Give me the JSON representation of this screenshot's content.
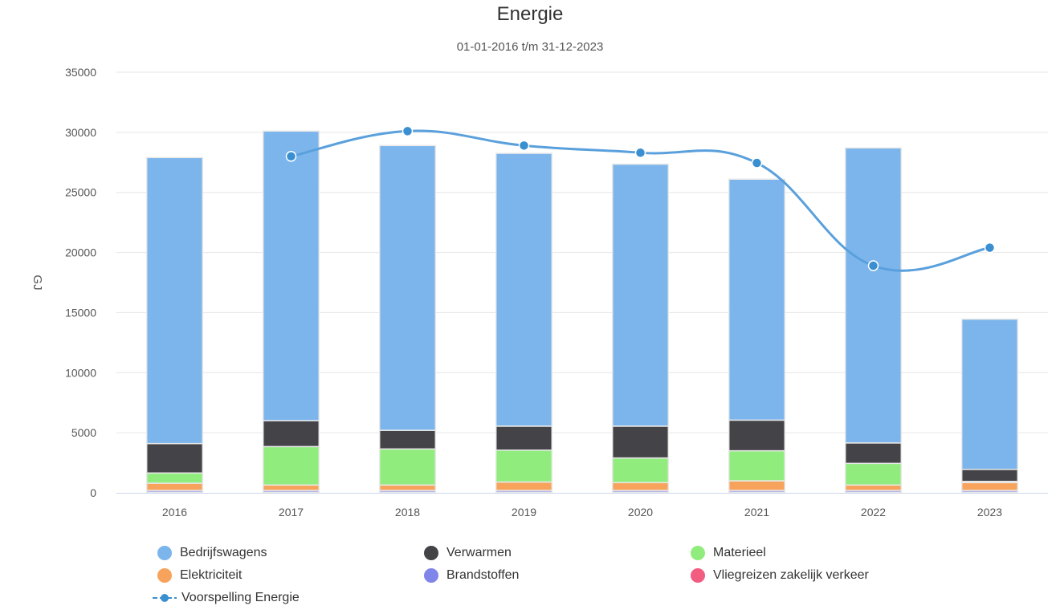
{
  "chart_data": {
    "type": "bar",
    "stacked": true,
    "title": "Energie",
    "subtitle": "01-01-2016 t/m 31-12-2023",
    "xlabel": "",
    "ylabel": "GJ",
    "ylim": [
      0,
      35000
    ],
    "yticks": [
      0,
      5000,
      10000,
      15000,
      20000,
      25000,
      30000,
      35000
    ],
    "grid": true,
    "legend_position": "bottom",
    "categories": [
      "2016",
      "2017",
      "2018",
      "2019",
      "2020",
      "2021",
      "2022",
      "2023"
    ],
    "series": [
      {
        "name": "Vliegreizen zakelijk verkeer",
        "color": "#f15c80",
        "values": [
          50,
          50,
          50,
          50,
          50,
          50,
          50,
          50
        ]
      },
      {
        "name": "Brandstoffen",
        "color": "#8085e9",
        "values": [
          150,
          150,
          150,
          150,
          150,
          150,
          150,
          150
        ]
      },
      {
        "name": "Elektriciteit",
        "color": "#f7a35c",
        "values": [
          600,
          450,
          450,
          700,
          650,
          800,
          450,
          650
        ]
      },
      {
        "name": "Materieel",
        "color": "#90ed7d",
        "values": [
          850,
          3200,
          3000,
          2650,
          2050,
          2500,
          1800,
          100
        ]
      },
      {
        "name": "Verwarmen",
        "color": "#434348",
        "values": [
          2450,
          2150,
          1550,
          2000,
          2650,
          2550,
          1700,
          1000
        ]
      },
      {
        "name": "Bedrijfswagens",
        "color": "#7cb5ec",
        "values": [
          23800,
          24100,
          23700,
          22700,
          21800,
          20050,
          24550,
          12500
        ]
      }
    ],
    "line_series": {
      "name": "Voorspelling Energie",
      "color": "#3a8fd0",
      "values": [
        null,
        28000,
        30100,
        28900,
        28300,
        27450,
        18900,
        20400
      ]
    }
  },
  "legend": {
    "items": [
      {
        "label": "Bedrijfswagens",
        "color": "#7cb5ec",
        "type": "dot"
      },
      {
        "label": "Verwarmen",
        "color": "#434348",
        "type": "dot"
      },
      {
        "label": "Materieel",
        "color": "#90ed7d",
        "type": "dot"
      },
      {
        "label": "Elektriciteit",
        "color": "#f7a35c",
        "type": "dot"
      },
      {
        "label": "Brandstoffen",
        "color": "#8085e9",
        "type": "dot"
      },
      {
        "label": "Vliegreizen zakelijk verkeer",
        "color": "#f15c80",
        "type": "dot"
      },
      {
        "label": "Voorspelling Energie",
        "color": "#3a8fd0",
        "type": "line"
      }
    ]
  }
}
